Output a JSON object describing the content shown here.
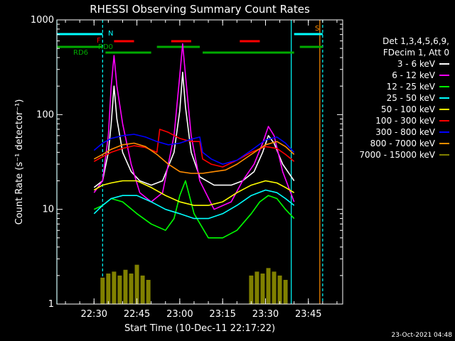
{
  "chart_data": {
    "type": "line",
    "title": "RHESSI Observing Summary Count Rates",
    "xlabel": "Start Time (10-Dec-11 22:17:22)",
    "ylabel": "Count Rate (s⁻¹ detector⁻¹)",
    "y_scale": "log",
    "ylim": [
      1,
      1000
    ],
    "xlim": [
      "22:17",
      "23:57"
    ],
    "x_ticks": [
      "22:30",
      "22:45",
      "23:00",
      "23:15",
      "23:30",
      "23:45"
    ],
    "y_ticks": [
      "1",
      "10",
      "100",
      "1000"
    ],
    "grid": false,
    "legend_position": "right",
    "footer_date": "23-Oct-2021 04:48",
    "legend_header": [
      "Det 1,3,4,5,6,9,",
      "FDecim 1, Att 0"
    ],
    "series": [
      {
        "name": "3 - 6 keV",
        "color": "#ffffff",
        "x": [
          "22:30",
          "22:33",
          "22:35",
          "22:36",
          "22:37",
          "22:38",
          "22:40",
          "22:43",
          "22:46",
          "22:50",
          "22:54",
          "22:58",
          "23:00",
          "23:01",
          "23:02",
          "23:04",
          "23:07",
          "23:12",
          "23:18",
          "23:22",
          "23:26",
          "23:29",
          "23:31",
          "23:33",
          "23:36",
          "23:40"
        ],
        "y": [
          17,
          20,
          40,
          80,
          200,
          90,
          40,
          25,
          20,
          18,
          20,
          40,
          110,
          280,
          120,
          40,
          22,
          18,
          18,
          20,
          25,
          40,
          60,
          50,
          30,
          20
        ]
      },
      {
        "name": "6 - 12 keV",
        "color": "#ff00ff",
        "x": [
          "22:30",
          "22:33",
          "22:35",
          "22:36",
          "22:37",
          "22:38",
          "22:40",
          "22:43",
          "22:46",
          "22:50",
          "22:54",
          "22:58",
          "23:00",
          "23:01",
          "23:02",
          "23:04",
          "23:07",
          "23:12",
          "23:18",
          "23:22",
          "23:26",
          "23:29",
          "23:31",
          "23:33",
          "23:36",
          "23:40"
        ],
        "y": [
          15,
          20,
          60,
          200,
          420,
          200,
          80,
          30,
          15,
          12,
          15,
          60,
          260,
          560,
          260,
          60,
          20,
          10,
          12,
          20,
          30,
          50,
          75,
          60,
          25,
          12
        ]
      },
      {
        "name": "12 - 25 keV",
        "color": "#00ff00",
        "x": [
          "22:30",
          "22:33",
          "22:36",
          "22:40",
          "22:45",
          "22:50",
          "22:55",
          "22:58",
          "23:00",
          "23:02",
          "23:05",
          "23:10",
          "23:15",
          "23:20",
          "23:25",
          "23:28",
          "23:31",
          "23:34",
          "23:37",
          "23:40"
        ],
        "y": [
          10,
          11,
          13,
          12,
          9,
          7,
          6,
          8,
          14,
          20,
          9,
          5,
          5,
          6,
          9,
          12,
          14,
          13,
          10,
          8
        ]
      },
      {
        "name": "25 - 50 keV",
        "color": "#00ffff",
        "x": [
          "22:30",
          "22:33",
          "22:36",
          "22:40",
          "22:45",
          "22:50",
          "22:55",
          "23:00",
          "23:05",
          "23:10",
          "23:15",
          "23:20",
          "23:25",
          "23:30",
          "23:34",
          "23:37",
          "23:40"
        ],
        "y": [
          9,
          11,
          13,
          14,
          14,
          12,
          10,
          9,
          8,
          8,
          9,
          11,
          14,
          16,
          15,
          13,
          11
        ]
      },
      {
        "name": "50 - 100 keV",
        "color": "#ffff00",
        "x": [
          "22:30",
          "22:33",
          "22:36",
          "22:40",
          "22:45",
          "22:50",
          "22:55",
          "23:00",
          "23:05",
          "23:10",
          "23:15",
          "23:20",
          "23:25",
          "23:30",
          "23:34",
          "23:37",
          "23:40"
        ],
        "y": [
          16,
          18,
          19,
          20,
          20,
          17,
          14,
          12,
          11,
          11,
          12,
          15,
          18,
          20,
          19,
          17,
          15
        ]
      },
      {
        "name": "100 - 300 keV",
        "color": "#ff0000",
        "x": [
          "22:30",
          "22:33",
          "22:36",
          "22:40",
          "22:44",
          "22:48",
          "22:52",
          "22:53",
          "22:56",
          "23:00",
          "23:04",
          "23:07",
          "23:08",
          "23:11",
          "23:15",
          "23:20",
          "23:25",
          "23:30",
          "23:34",
          "23:37",
          "23:40"
        ],
        "y": [
          32,
          36,
          40,
          44,
          47,
          45,
          40,
          70,
          65,
          56,
          52,
          52,
          34,
          30,
          28,
          33,
          40,
          46,
          44,
          38,
          32
        ]
      },
      {
        "name": "300 - 800 keV",
        "color": "#0000ff",
        "x": [
          "22:30",
          "22:33",
          "22:36",
          "22:40",
          "22:44",
          "22:48",
          "22:52",
          "22:56",
          "23:00",
          "23:04",
          "23:07",
          "23:08",
          "23:11",
          "23:15",
          "23:20",
          "23:25",
          "23:30",
          "23:34",
          "23:37",
          "23:40"
        ],
        "y": [
          42,
          50,
          56,
          60,
          62,
          58,
          52,
          48,
          50,
          55,
          58,
          40,
          34,
          30,
          33,
          42,
          54,
          58,
          50,
          40
        ]
      },
      {
        "name": "800 - 7000 keV",
        "color": "#ff8c00",
        "x": [
          "22:30",
          "22:33",
          "22:36",
          "22:40",
          "22:44",
          "22:48",
          "22:52",
          "22:56",
          "23:00",
          "23:04",
          "23:08",
          "23:12",
          "23:16",
          "23:20",
          "23:25",
          "23:30",
          "23:34",
          "23:37",
          "23:40"
        ],
        "y": [
          34,
          38,
          43,
          48,
          50,
          46,
          38,
          30,
          25,
          24,
          24,
          25,
          26,
          30,
          38,
          48,
          52,
          46,
          38
        ]
      },
      {
        "name": "7000 - 15000 keV",
        "color": "#808000",
        "x": [
          "22:33",
          "22:35",
          "22:37",
          "22:39",
          "22:41",
          "22:43",
          "22:45",
          "22:47",
          "22:49",
          "23:25",
          "23:27",
          "23:29",
          "23:31",
          "23:33",
          "23:35",
          "23:37"
        ],
        "y": [
          1.9,
          2.1,
          2.2,
          2.0,
          2.3,
          2.1,
          2.6,
          2.0,
          1.8,
          2.0,
          2.2,
          2.1,
          2.4,
          2.2,
          2.0,
          1.8
        ]
      }
    ],
    "annotations": [
      {
        "label": "N",
        "color": "#00ffff"
      },
      {
        "label": "F",
        "color": "#ff0000"
      },
      {
        "label": "RD0",
        "color": "#00aa00"
      },
      {
        "label": "RD6",
        "color": "#00aa00"
      },
      {
        "label": "S",
        "color": "#ff8c00"
      }
    ],
    "state_bars": [
      {
        "name": "N",
        "color": "#00ffff",
        "segments": [
          [
            "22:17",
            "22:33"
          ],
          [
            "23:40",
            "23:50"
          ]
        ]
      },
      {
        "name": "F",
        "color": "#ff0000",
        "segments": [
          [
            "22:37",
            "22:44"
          ],
          [
            "22:57",
            "23:04"
          ],
          [
            "23:21",
            "23:28"
          ]
        ]
      },
      {
        "name": "RD0",
        "color": "#00aa00",
        "segments": [
          [
            "22:17",
            "22:33"
          ],
          [
            "22:52",
            "23:07"
          ],
          [
            "23:42",
            "23:50"
          ]
        ]
      },
      {
        "name": "RD6",
        "color": "#00aa00",
        "segments": [
          [
            "22:34",
            "22:50"
          ],
          [
            "23:08",
            "23:40"
          ]
        ]
      }
    ],
    "vlines": [
      {
        "x": "22:17",
        "color": "#00ffff",
        "style": "solid"
      },
      {
        "x": "22:33",
        "color": "#00ffff",
        "style": "dashed"
      },
      {
        "x": "23:39",
        "color": "#00ffff",
        "style": "solid"
      },
      {
        "x": "23:49",
        "color": "#ff8c00",
        "style": "solid"
      },
      {
        "x": "23:50",
        "color": "#00ffff",
        "style": "dashed"
      }
    ]
  }
}
